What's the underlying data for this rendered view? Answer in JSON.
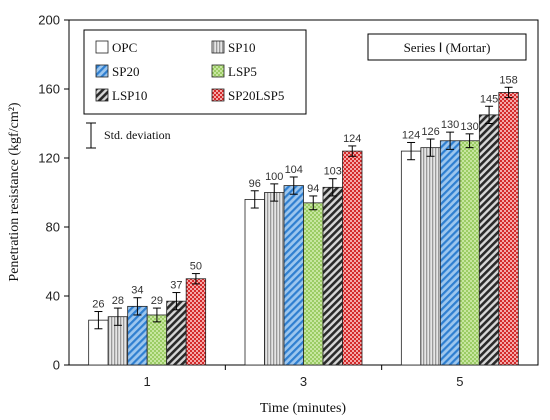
{
  "chart_data": {
    "type": "bar",
    "categories": [
      "1",
      "3",
      "5"
    ],
    "xlabel": "Time (minutes)",
    "ylabel": "Penetration resistance (kgf/cm²)",
    "ylim": [
      0,
      200
    ],
    "yticks": [
      0,
      40,
      80,
      120,
      160,
      200
    ],
    "grid": false,
    "legend_position": "top-left",
    "series_label": "Series Ⅰ (Mortar)",
    "std_label": "Std. deviation",
    "series": [
      {
        "name": "OPC",
        "values": [
          26,
          96,
          124
        ],
        "errors": [
          5,
          5,
          5
        ],
        "color": "#ffffff",
        "pattern": "solid"
      },
      {
        "name": "SP10",
        "values": [
          28,
          100,
          126
        ],
        "errors": [
          5,
          5,
          5
        ],
        "color": "#c8c8c8",
        "pattern": "vlines"
      },
      {
        "name": "SP20",
        "values": [
          34,
          104,
          130
        ],
        "errors": [
          5,
          5,
          5
        ],
        "color": "#5b9bd5",
        "pattern": "diag"
      },
      {
        "name": "LSP5",
        "values": [
          29,
          94,
          130
        ],
        "errors": [
          4,
          4,
          4
        ],
        "color": "#a9d46b",
        "pattern": "dots"
      },
      {
        "name": "LSP10",
        "values": [
          37,
          103,
          145
        ],
        "errors": [
          5,
          5,
          5
        ],
        "color": "#404040",
        "pattern": "hatch"
      },
      {
        "name": "SP20LSP5",
        "values": [
          50,
          124,
          158
        ],
        "errors": [
          3,
          3,
          3
        ],
        "color": "#e05050",
        "pattern": "checker"
      }
    ]
  }
}
